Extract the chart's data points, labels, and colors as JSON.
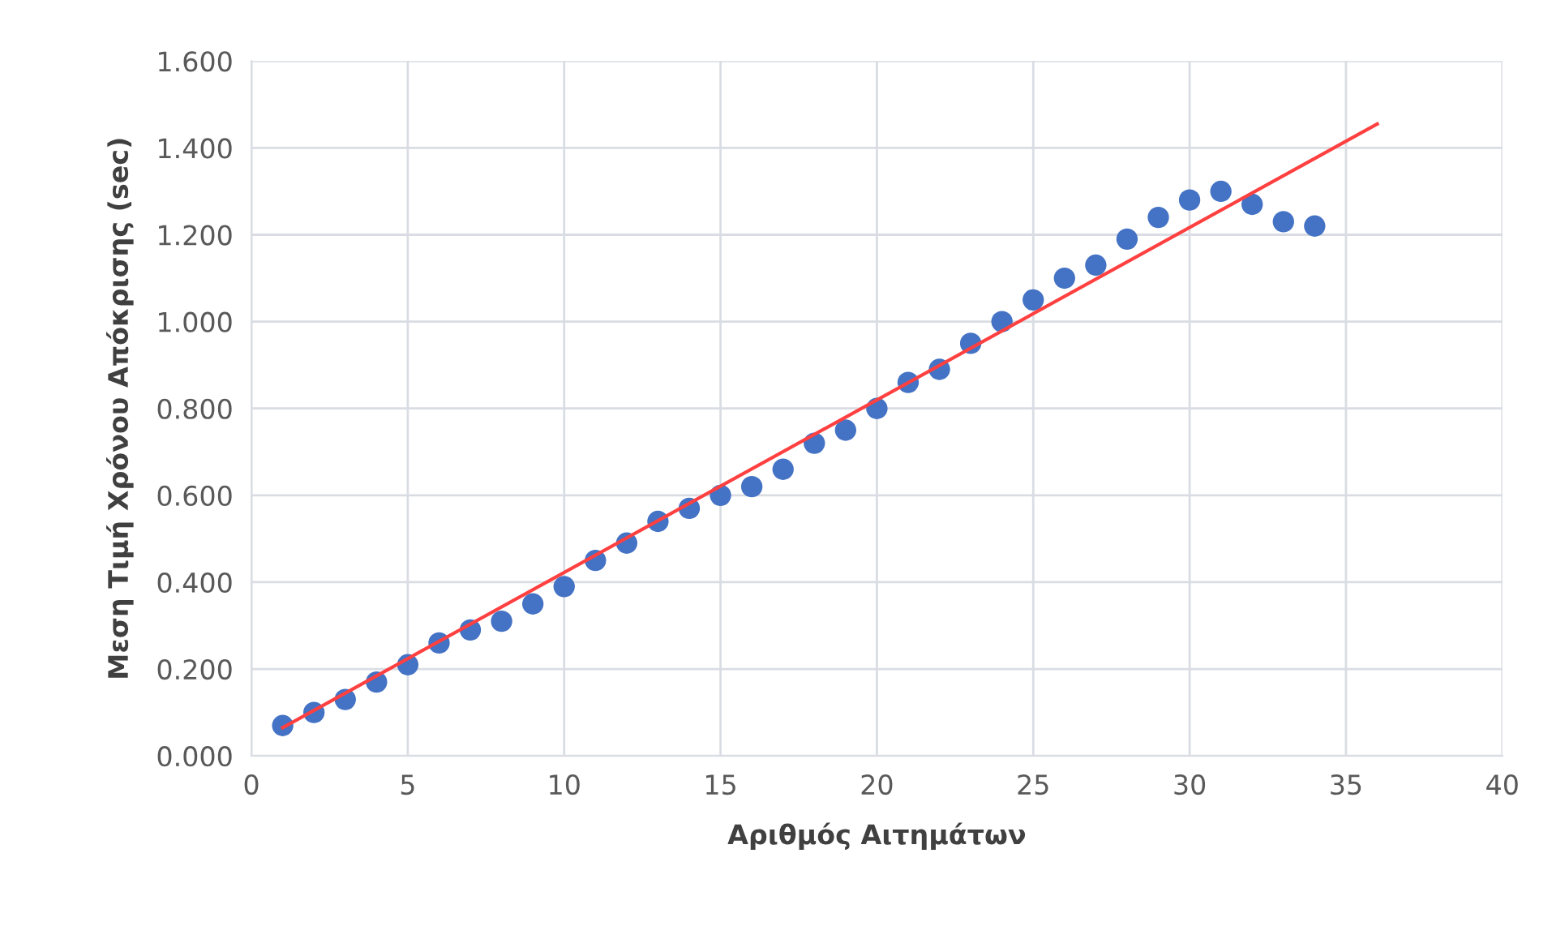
{
  "chart_data": {
    "type": "scatter",
    "xlabel": "Αριθμός Αιτημάτων",
    "ylabel": "Μεση Τιμή Χρόνου Απόκρισης (sec)",
    "series": [
      {
        "color": "#4472c4",
        "marker": "circle",
        "x": [
          1,
          2,
          3,
          4,
          5,
          6,
          7,
          8,
          9,
          10,
          11,
          12,
          13,
          14,
          15,
          16,
          17,
          18,
          19,
          20,
          21,
          22,
          23,
          24,
          25,
          26,
          27,
          28,
          29,
          30,
          31,
          32,
          33,
          34
        ],
        "values": [
          0.07,
          0.1,
          0.13,
          0.17,
          0.21,
          0.26,
          0.29,
          0.31,
          0.35,
          0.39,
          0.45,
          0.49,
          0.54,
          0.57,
          0.6,
          0.62,
          0.66,
          0.72,
          0.75,
          0.8,
          0.86,
          0.89,
          0.95,
          1.0,
          1.05,
          1.1,
          1.13,
          1.19,
          1.24,
          1.28,
          1.3,
          1.27,
          1.23,
          1.22
        ]
      },
      {
        "type": "line",
        "color": "#ff4040",
        "x": [
          1,
          36
        ],
        "values": [
          0.065,
          1.455
        ]
      }
    ],
    "xlim": [
      0,
      40
    ],
    "xticks": [
      0,
      5,
      10,
      15,
      20,
      25,
      30,
      35,
      40
    ],
    "ylim": [
      0,
      1.6
    ],
    "yticks": [
      {
        "value": 0,
        "label": "0.000"
      },
      {
        "value": 0.2,
        "label": "0.200"
      },
      {
        "value": 0.4,
        "label": "0.400"
      },
      {
        "value": 0.6,
        "label": "0.600"
      },
      {
        "value": 0.8,
        "label": "0.800"
      },
      {
        "value": 1.0,
        "label": "1.000"
      },
      {
        "value": 1.2,
        "label": "1.200"
      },
      {
        "value": 1.4,
        "label": "1.400"
      },
      {
        "value": 1.6,
        "label": "1.600"
      }
    ],
    "grid": true
  }
}
